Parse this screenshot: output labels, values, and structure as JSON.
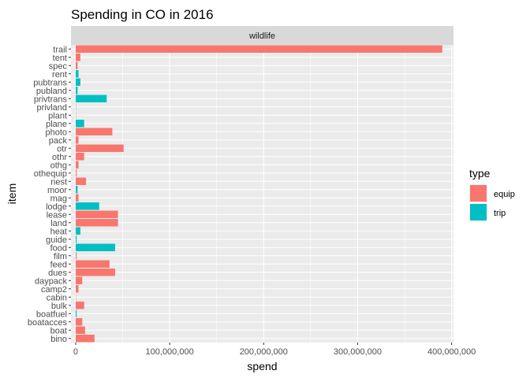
{
  "chart_data": {
    "type": "bar",
    "orientation": "horizontal",
    "title": "Spending in CO in 2016",
    "facet": "wildlife",
    "xlabel": "spend",
    "ylabel": "item",
    "xlim": [
      -5000000,
      402000000
    ],
    "x_ticks": [
      0,
      100000000,
      200000000,
      300000000,
      400000000
    ],
    "x_tick_labels": [
      "0",
      "100,000,000",
      "200,000,000",
      "300,000,000",
      "400,000,000"
    ],
    "grid": true,
    "legend": {
      "title": "type",
      "position": "right",
      "entries": [
        {
          "label": "equip",
          "color": "#F8766D"
        },
        {
          "label": "trip",
          "color": "#00BFC4"
        }
      ]
    },
    "colors": {
      "equip": "#F8766D",
      "trip": "#00BFC4",
      "panel": "#EBEBEB",
      "strip": "#D9D9D9",
      "grid": "#FFFFFF"
    },
    "categories": [
      "trail",
      "tent",
      "spec",
      "rent",
      "pubtrans",
      "publand",
      "privtrans",
      "privland",
      "plant",
      "plane",
      "photo",
      "pack",
      "otr",
      "othr",
      "othg",
      "othequip",
      "nest",
      "moor",
      "mag",
      "lodge",
      "lease",
      "land",
      "heat",
      "guide",
      "food",
      "film",
      "feed",
      "dues",
      "daypack",
      "camp2",
      "cabin",
      "bulk",
      "boatfuel",
      "boataccess",
      "boat",
      "bino"
    ],
    "tick_labels": [
      "trail",
      "tent",
      "spec",
      "rent",
      "pubtrans",
      "publand",
      "privtrans",
      "privland",
      "plant",
      "plane",
      "photo",
      "pack",
      "otr",
      "othr",
      "othg",
      "othequip",
      "nest",
      "moor",
      "mag",
      "lodge",
      "lease",
      "land",
      "heat",
      "guide",
      "food",
      "film",
      "feed",
      "dues",
      "daypack",
      "camp2",
      "cabin",
      "bulk",
      "boatfuel",
      "boatacces",
      "boat",
      "bino"
    ],
    "bars": [
      {
        "item": "trail",
        "type": "equip",
        "value": 390000000
      },
      {
        "item": "tent",
        "type": "equip",
        "value": 5000000
      },
      {
        "item": "spec",
        "type": "equip",
        "value": 2000000
      },
      {
        "item": "rent",
        "type": "trip",
        "value": 3000000
      },
      {
        "item": "pubtrans",
        "type": "trip",
        "value": 5000000
      },
      {
        "item": "publand",
        "type": "trip",
        "value": 2000000
      },
      {
        "item": "privtrans",
        "type": "trip",
        "value": 33000000
      },
      {
        "item": "privland",
        "type": "trip",
        "value": 300000
      },
      {
        "item": "plant",
        "type": "equip",
        "value": 300000
      },
      {
        "item": "plane",
        "type": "trip",
        "value": 9000000
      },
      {
        "item": "photo",
        "type": "equip",
        "value": 39000000
      },
      {
        "item": "pack",
        "type": "equip",
        "value": 3000000
      },
      {
        "item": "otr",
        "type": "equip",
        "value": 51000000
      },
      {
        "item": "othr",
        "type": "equip",
        "value": 9000000
      },
      {
        "item": "othg",
        "type": "equip",
        "value": 3000000
      },
      {
        "item": "othequip",
        "type": "equip",
        "value": 1000000
      },
      {
        "item": "nest",
        "type": "equip",
        "value": 11000000
      },
      {
        "item": "moor",
        "type": "trip",
        "value": 2000000
      },
      {
        "item": "mag",
        "type": "equip",
        "value": 3000000
      },
      {
        "item": "lodge",
        "type": "trip",
        "value": 25000000
      },
      {
        "item": "lease",
        "type": "equip",
        "value": 45000000
      },
      {
        "item": "land",
        "type": "equip",
        "value": 45000000
      },
      {
        "item": "heat",
        "type": "trip",
        "value": 5000000
      },
      {
        "item": "guide",
        "type": "trip",
        "value": 1000000
      },
      {
        "item": "food",
        "type": "trip",
        "value": 42000000
      },
      {
        "item": "film",
        "type": "equip",
        "value": 1000000
      },
      {
        "item": "feed",
        "type": "equip",
        "value": 36000000
      },
      {
        "item": "dues",
        "type": "equip",
        "value": 42000000
      },
      {
        "item": "daypack",
        "type": "equip",
        "value": 7000000
      },
      {
        "item": "camp2",
        "type": "equip",
        "value": 3000000
      },
      {
        "item": "cabin",
        "type": "equip",
        "value": 300000
      },
      {
        "item": "bulk",
        "type": "equip",
        "value": 9000000
      },
      {
        "item": "boatfuel",
        "type": "trip",
        "value": 1000000
      },
      {
        "item": "boataccess",
        "type": "equip",
        "value": 7000000
      },
      {
        "item": "boat",
        "type": "equip",
        "value": 10000000
      },
      {
        "item": "bino",
        "type": "equip",
        "value": 20000000
      }
    ]
  }
}
